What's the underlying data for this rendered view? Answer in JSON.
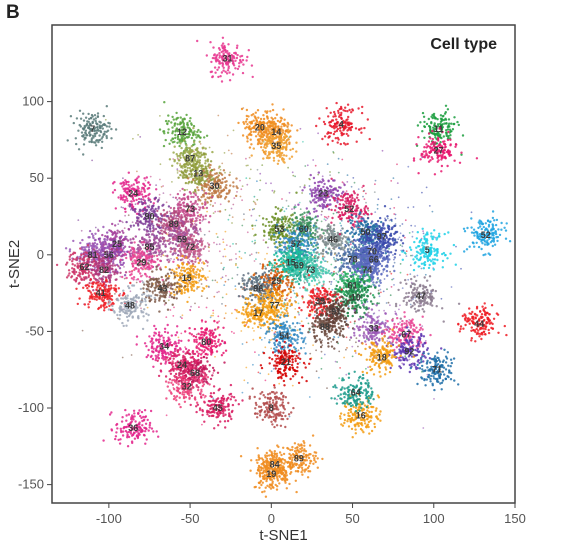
{
  "panel_letter": "B",
  "chart_data": {
    "type": "scatter",
    "title": "Cell type",
    "xlabel": "t-SNE1",
    "ylabel": "t-SNE2",
    "xlim": [
      -135,
      150
    ],
    "ylim": [
      -162,
      150
    ],
    "xticks": [
      -100,
      -50,
      0,
      50,
      100,
      150
    ],
    "yticks": [
      -150,
      -100,
      -50,
      0,
      50,
      100
    ],
    "grid": false,
    "clusters": [
      {
        "label": "31",
        "x": -27,
        "y": 128,
        "color": "#e8368f"
      },
      {
        "label": "7",
        "x": -110,
        "y": 82,
        "color": "#5b7b7a"
      },
      {
        "label": "12",
        "x": -55,
        "y": 80,
        "color": "#56a33b"
      },
      {
        "label": "87",
        "x": -50,
        "y": 63,
        "color": "#9aa84a"
      },
      {
        "label": "13",
        "x": -45,
        "y": 53,
        "color": "#8e9a3a"
      },
      {
        "label": "30",
        "x": -35,
        "y": 45,
        "color": "#c07a45"
      },
      {
        "label": "20",
        "x": -7,
        "y": 83,
        "color": "#f08c1e"
      },
      {
        "label": "14",
        "x": 3,
        "y": 80,
        "color": "#f08c1e"
      },
      {
        "label": "35",
        "x": 3,
        "y": 71,
        "color": "#f0a030"
      },
      {
        "label": "4",
        "x": 43,
        "y": 85,
        "color": "#e8192c"
      },
      {
        "label": "11",
        "x": 103,
        "y": 82,
        "color": "#1b9e3e"
      },
      {
        "label": "27",
        "x": 103,
        "y": 68,
        "color": "#e8176f"
      },
      {
        "label": "24",
        "x": -85,
        "y": 40,
        "color": "#e3268c"
      },
      {
        "label": "90",
        "x": -75,
        "y": 25,
        "color": "#7d3c98"
      },
      {
        "label": "73",
        "x": -50,
        "y": 30,
        "color": "#c64b8c"
      },
      {
        "label": "89",
        "x": -60,
        "y": 20,
        "color": "#b2467a"
      },
      {
        "label": "85",
        "x": -75,
        "y": 5,
        "color": "#a0509a"
      },
      {
        "label": "59",
        "x": -55,
        "y": 10,
        "color": "#a0509a"
      },
      {
        "label": "72",
        "x": -50,
        "y": 5,
        "color": "#c45a8a"
      },
      {
        "label": "25",
        "x": -95,
        "y": 7,
        "color": "#a43f9b"
      },
      {
        "label": "56",
        "x": -100,
        "y": 0,
        "color": "#8e44ad"
      },
      {
        "label": "81",
        "x": -110,
        "y": 0,
        "color": "#9b59b6"
      },
      {
        "label": "29",
        "x": -80,
        "y": -5,
        "color": "#e84393"
      },
      {
        "label": "62",
        "x": -115,
        "y": -8,
        "color": "#cc3366"
      },
      {
        "label": "82",
        "x": -103,
        "y": -10,
        "color": "#b03a7c"
      },
      {
        "label": "15",
        "x": -52,
        "y": -15,
        "color": "#f39c12"
      },
      {
        "label": "41",
        "x": -105,
        "y": -25,
        "color": "#ee1c25"
      },
      {
        "label": "43",
        "x": -67,
        "y": -22,
        "color": "#7f5a4a"
      },
      {
        "label": "48",
        "x": -87,
        "y": -33,
        "color": "#9fa8b8"
      },
      {
        "label": "53",
        "x": 5,
        "y": 17,
        "color": "#6b8e23"
      },
      {
        "label": "60",
        "x": 20,
        "y": 17,
        "color": "#3a8f5a"
      },
      {
        "label": "57",
        "x": 15,
        "y": 7,
        "color": "#2e86c1"
      },
      {
        "label": "69",
        "x": 17,
        "y": -7,
        "color": "#16a085"
      },
      {
        "label": "29",
        "x": 3,
        "y": -17,
        "color": "#d35400"
      },
      {
        "label": "96",
        "x": -8,
        "y": -22,
        "color": "#5d6d7e"
      },
      {
        "label": "15",
        "x": 12,
        "y": -5,
        "color": "#1abc9c"
      },
      {
        "label": "73",
        "x": 24,
        "y": -10,
        "color": "#48c9b0"
      },
      {
        "label": "46",
        "x": 38,
        "y": 10,
        "color": "#7f8c8d"
      },
      {
        "label": "23",
        "x": 32,
        "y": 40,
        "color": "#8e44ad"
      },
      {
        "label": "52",
        "x": 48,
        "y": 30,
        "color": "#d81b60"
      },
      {
        "label": "50",
        "x": 58,
        "y": 15,
        "color": "#2471a3"
      },
      {
        "label": "97",
        "x": 68,
        "y": 12,
        "color": "#3949ab"
      },
      {
        "label": "70",
        "x": 62,
        "y": 2,
        "color": "#3949ab"
      },
      {
        "label": "78",
        "x": 50,
        "y": -3,
        "color": "#4a6fa5"
      },
      {
        "label": "66",
        "x": 63,
        "y": -3,
        "color": "#5c6bc0"
      },
      {
        "label": "74",
        "x": 59,
        "y": -10,
        "color": "#5c6bc0"
      },
      {
        "label": "5",
        "x": 96,
        "y": 3,
        "color": "#1fd1e8"
      },
      {
        "label": "52",
        "x": 132,
        "y": 13,
        "color": "#1fa3e0"
      },
      {
        "label": "47",
        "x": 92,
        "y": -27,
        "color": "#8c7d8f"
      },
      {
        "label": "61",
        "x": 50,
        "y": -20,
        "color": "#27ae60"
      },
      {
        "label": "10",
        "x": 52,
        "y": -28,
        "color": "#1e8449"
      },
      {
        "label": "77",
        "x": 2,
        "y": -33,
        "color": "#f39c12"
      },
      {
        "label": "17",
        "x": -8,
        "y": -38,
        "color": "#f39c12"
      },
      {
        "label": "39",
        "x": 30,
        "y": -30,
        "color": "#ee1c25"
      },
      {
        "label": "88",
        "x": 33,
        "y": -47,
        "color": "#6d4c41"
      },
      {
        "label": "91",
        "x": 40,
        "y": -37,
        "color": "#5d4037"
      },
      {
        "label": "33",
        "x": 63,
        "y": -48,
        "color": "#9b59b6"
      },
      {
        "label": "67",
        "x": 83,
        "y": -52,
        "color": "#e84393"
      },
      {
        "label": "92",
        "x": 85,
        "y": -63,
        "color": "#5e35b1"
      },
      {
        "label": "18",
        "x": 68,
        "y": -67,
        "color": "#f39c12"
      },
      {
        "label": "54",
        "x": 8,
        "y": -53,
        "color": "#2e86c1"
      },
      {
        "label": "34",
        "x": -66,
        "y": -60,
        "color": "#e3268c"
      },
      {
        "label": "80",
        "x": -40,
        "y": -57,
        "color": "#e8176f"
      },
      {
        "label": "24",
        "x": -55,
        "y": -72,
        "color": "#d81b60"
      },
      {
        "label": "68",
        "x": -47,
        "y": -77,
        "color": "#c2185b"
      },
      {
        "label": "32",
        "x": -52,
        "y": -86,
        "color": "#ec407a"
      },
      {
        "label": "45",
        "x": -33,
        "y": -100,
        "color": "#d81b60"
      },
      {
        "label": "21",
        "x": 9,
        "y": -70,
        "color": "#d50000"
      },
      {
        "label": "8",
        "x": 0,
        "y": -100,
        "color": "#b24a4a"
      },
      {
        "label": "16",
        "x": 55,
        "y": -105,
        "color": "#f39c12"
      },
      {
        "label": "64",
        "x": 52,
        "y": -90,
        "color": "#1a9a8a"
      },
      {
        "label": "71",
        "x": 102,
        "y": -75,
        "color": "#1e6fa8"
      },
      {
        "label": "44",
        "x": 128,
        "y": -45,
        "color": "#ee1c25"
      },
      {
        "label": "36",
        "x": -85,
        "y": -113,
        "color": "#e3268c"
      },
      {
        "label": "84",
        "x": 2,
        "y": -137,
        "color": "#f08c1e"
      },
      {
        "label": "19",
        "x": 0,
        "y": -143,
        "color": "#f08c1e"
      },
      {
        "label": "89",
        "x": 17,
        "y": -133,
        "color": "#f08c1e"
      }
    ]
  }
}
